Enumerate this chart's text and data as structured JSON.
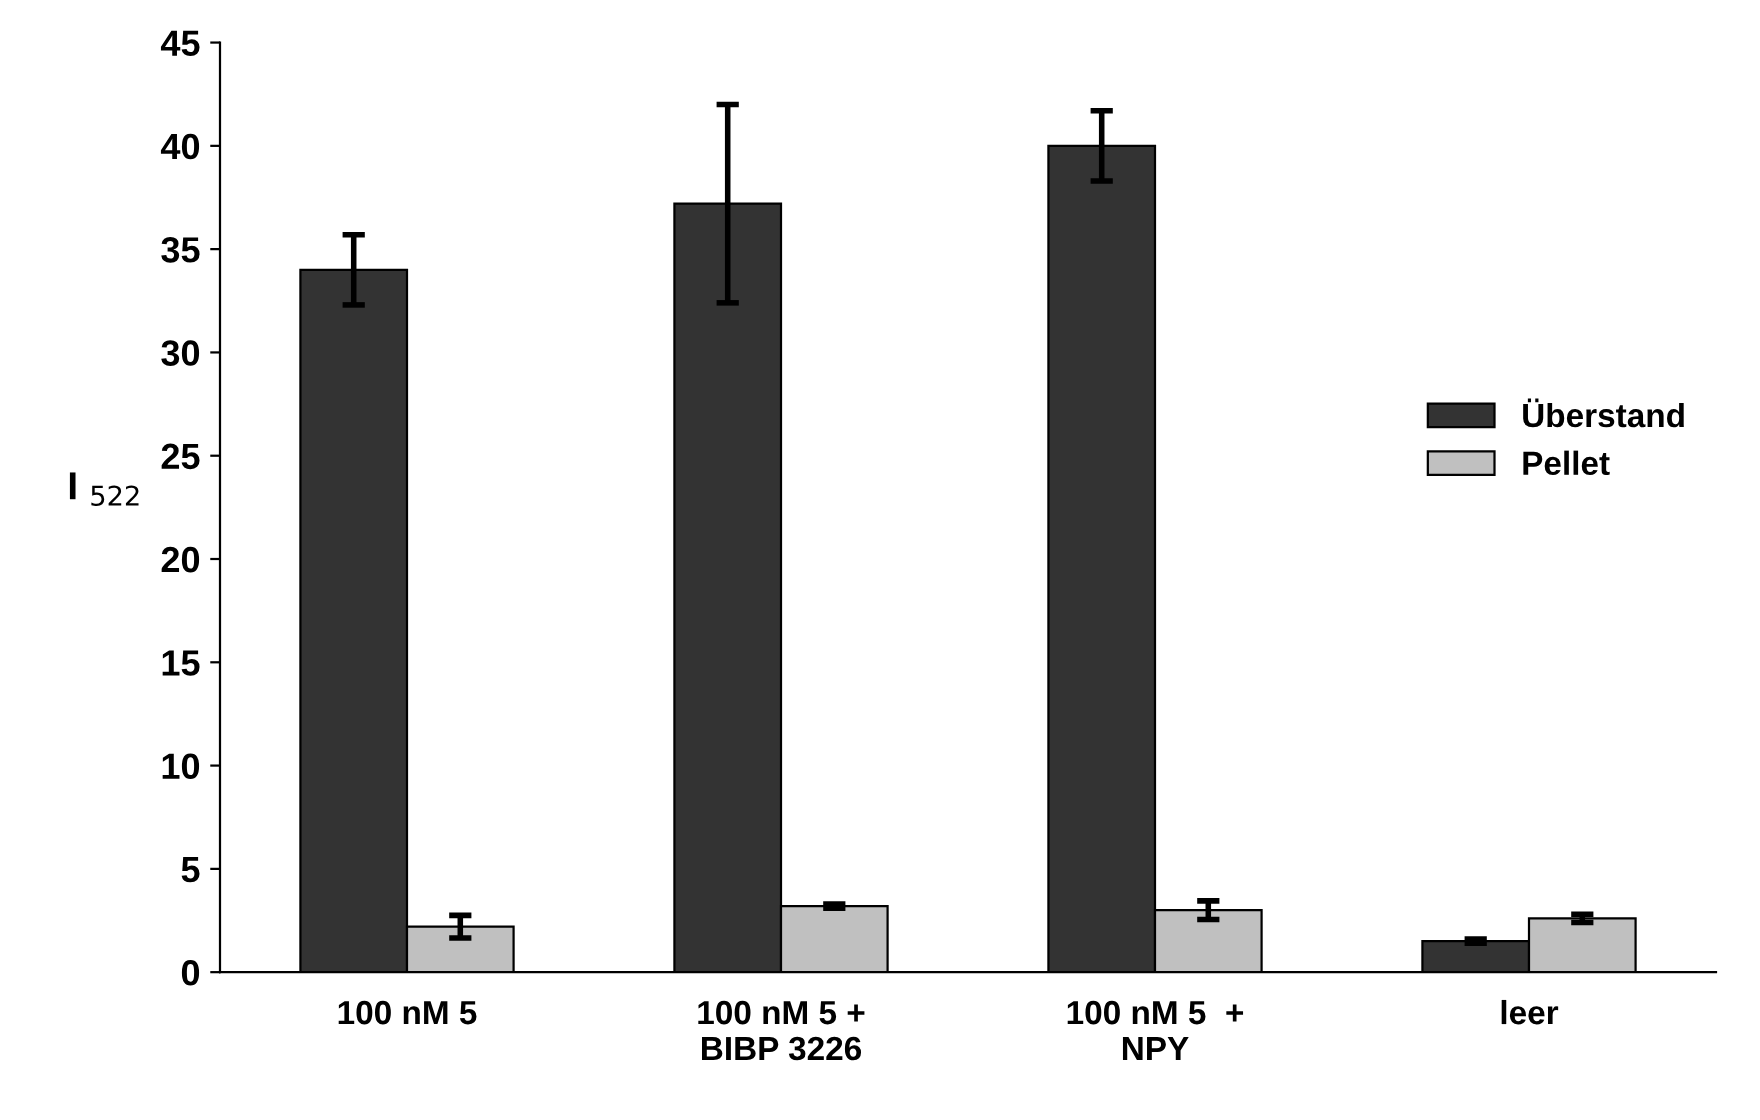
{
  "chart_data": {
    "type": "bar",
    "ylabel": "I $_{522}$",
    "categories": [
      "100 nM 5",
      "100 nM 5 +\nBIBP 3226",
      "100 nM 5  +\nNPY",
      "leer"
    ],
    "series": [
      {
        "name": "Überstand",
        "color": "#333333",
        "values": [
          34.0,
          37.2,
          40.0,
          1.5
        ],
        "errors": [
          1.7,
          4.8,
          1.7,
          0.1
        ]
      },
      {
        "name": "Pellet",
        "color": "#c0c0c0",
        "values": [
          2.2,
          3.2,
          3.0,
          2.6
        ],
        "errors": [
          0.55,
          0.1,
          0.45,
          0.2
        ]
      }
    ],
    "ylim": [
      0,
      45
    ],
    "yticks": [
      0,
      5,
      10,
      15,
      20,
      25,
      30,
      35,
      40,
      45
    ],
    "grid": false,
    "legend": "right"
  }
}
